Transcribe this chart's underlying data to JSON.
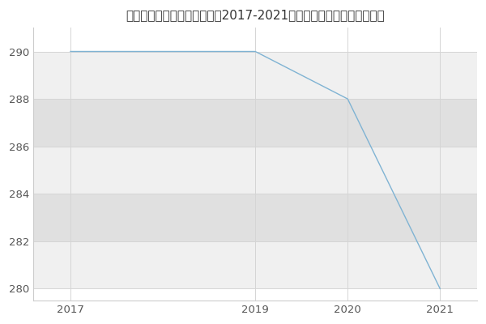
{
  "title": "太原理工大学数学学院数学（2017-2021历年复试）研究生录取分数线",
  "x": [
    2017,
    2018,
    2019,
    2020,
    2021
  ],
  "y": [
    290,
    290,
    290,
    288,
    280
  ],
  "line_color": "#7fb3d3",
  "xlim": [
    2016.6,
    2021.4
  ],
  "ylim": [
    279.5,
    291.0
  ],
  "xticks": [
    2017,
    2019,
    2020,
    2021
  ],
  "yticks": [
    280,
    282,
    284,
    286,
    288,
    290
  ],
  "background_color": "#ffffff",
  "plot_bg_color": "#ffffff",
  "band_color_light": "#f0f0f0",
  "band_color_dark": "#e0e0e0",
  "grid_color": "#d5d5d5",
  "title_fontsize": 11,
  "tick_fontsize": 9.5,
  "linewidth": 1.0
}
